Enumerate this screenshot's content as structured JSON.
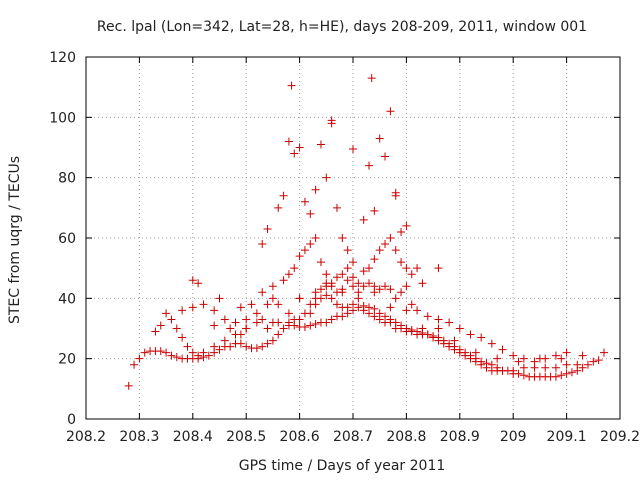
{
  "chart_data": {
    "type": "scatter",
    "title": "Rec. lpal (Lon=342, Lat=28, h=HE), days 208-209, 2011, window 001",
    "xlabel": "GPS time / Days of year 2011",
    "ylabel": "STEC from uqrg / TECUs",
    "xlim": [
      208.2,
      209.2
    ],
    "ylim": [
      0,
      120
    ],
    "xticks": [
      208.2,
      208.3,
      208.4,
      208.5,
      208.6,
      208.7,
      208.8,
      208.9,
      209,
      209.1,
      209.2
    ],
    "xtick_labels": [
      "208.2",
      "208.3",
      "208.4",
      "208.5",
      "208.6",
      "208.7",
      "208.8",
      "208.9",
      "209",
      "209.1",
      "209.2"
    ],
    "yticks": [
      0,
      20,
      40,
      60,
      80,
      100,
      120
    ],
    "ytick_labels": [
      "0",
      "20",
      "40",
      "60",
      "80",
      "100",
      "120"
    ],
    "grid": true,
    "marker": "plus",
    "color": "#cc0000",
    "series": [
      {
        "x": [
          208.28,
          208.29,
          208.3,
          208.31,
          208.32,
          208.33,
          208.34,
          208.35,
          208.36,
          208.37,
          208.38,
          208.39,
          208.4,
          208.41,
          208.42,
          208.43,
          208.44,
          208.45,
          208.46,
          208.47,
          208.48,
          208.49,
          208.5,
          208.51,
          208.52,
          208.53,
          208.54,
          208.55,
          208.56,
          208.57,
          208.58,
          208.59,
          208.6,
          208.61,
          208.62,
          208.63,
          208.64,
          208.65,
          208.66,
          208.67,
          208.68,
          208.69,
          208.7,
          208.71,
          208.72,
          208.73,
          208.74,
          208.75,
          208.76,
          208.77,
          208.78,
          208.79,
          208.8,
          208.81,
          208.82,
          208.83,
          208.84,
          208.85,
          208.86,
          208.87,
          208.88,
          208.89,
          208.9,
          208.91,
          208.92,
          208.93,
          208.94,
          208.95,
          208.96,
          208.97,
          208.98,
          208.99,
          209.0,
          209.01,
          209.02,
          209.03,
          209.04,
          209.05,
          209.06,
          209.07,
          209.08,
          209.09,
          209.1,
          209.11,
          209.12,
          209.13,
          209.14,
          209.15,
          209.16,
          208.33,
          208.34,
          208.36,
          208.37,
          208.38,
          208.39,
          208.4,
          208.41,
          208.42,
          208.44,
          208.46,
          208.48,
          208.49,
          208.5,
          208.52,
          208.53,
          208.54,
          208.56,
          208.58,
          208.6,
          208.62,
          208.63,
          208.64,
          208.65,
          208.66,
          208.67,
          208.68,
          208.69,
          208.7,
          208.72,
          208.73,
          208.74,
          208.75,
          208.76,
          208.77,
          208.78,
          208.79,
          208.8,
          208.81,
          208.82,
          208.83,
          208.84,
          208.85,
          208.86,
          208.87,
          208.88,
          208.89,
          208.9,
          208.91,
          208.92,
          208.93,
          208.94,
          208.95,
          208.96,
          208.97,
          208.98,
          209.0,
          209.02,
          209.04,
          209.06,
          209.08,
          209.1,
          209.12,
          208.35,
          208.38,
          208.4,
          208.42,
          208.44,
          208.46,
          208.48,
          208.5,
          208.52,
          208.54,
          208.55,
          208.56,
          208.58,
          208.59,
          208.6,
          208.61,
          208.62,
          208.63,
          208.64,
          208.65,
          208.66,
          208.67,
          208.68,
          208.69,
          208.7,
          208.71,
          208.72,
          208.73,
          208.74,
          208.75,
          208.76,
          208.77,
          208.78,
          208.79,
          208.8,
          208.81,
          208.82,
          208.84,
          208.86,
          208.88,
          208.9,
          208.92,
          208.94,
          208.96,
          208.98,
          209.0,
          209.02,
          209.04,
          209.06,
          209.08,
          209.1,
          208.41,
          208.45,
          208.49,
          208.51,
          208.53,
          208.55,
          208.57,
          208.58,
          208.59,
          208.6,
          208.61,
          208.62,
          208.63,
          208.64,
          208.65,
          208.66,
          208.67,
          208.68,
          208.69,
          208.7,
          208.72,
          208.73,
          208.74,
          208.75,
          208.76,
          208.77,
          208.78,
          208.79,
          208.8,
          208.81,
          208.82,
          208.83,
          208.86,
          208.53,
          208.54,
          208.56,
          208.57,
          208.58,
          208.59,
          208.6,
          208.61,
          208.62,
          208.63,
          208.64,
          208.65,
          208.66,
          208.67,
          208.68,
          208.69,
          208.7,
          208.71,
          208.72,
          208.73,
          208.74,
          208.75,
          208.76,
          208.77,
          208.78,
          208.79,
          208.8,
          208.4,
          208.44,
          208.47,
          208.5,
          208.55,
          208.6,
          208.63,
          208.65,
          208.68,
          208.71,
          208.74,
          208.77,
          208.8,
          208.83,
          208.86,
          208.89,
          208.93,
          208.97,
          209.01,
          209.05,
          209.09,
          209.13,
          209.17
        ],
        "y": [
          11,
          18,
          20,
          22,
          22.5,
          22.5,
          22.5,
          22,
          21,
          20.5,
          20,
          20,
          20,
          20,
          20.5,
          21,
          22,
          23,
          24,
          24,
          25,
          25,
          24,
          23.5,
          23.5,
          24,
          25,
          26,
          28,
          30,
          31,
          31,
          30.5,
          30.5,
          31,
          31.5,
          32,
          32,
          33,
          34,
          34,
          35,
          36,
          37,
          37.5,
          37,
          36.5,
          35,
          34,
          33,
          32,
          31,
          30,
          29.5,
          29,
          28.5,
          28,
          27.5,
          27,
          26,
          25,
          24,
          23,
          22,
          21,
          20,
          19,
          18.5,
          18,
          17,
          16,
          16,
          15,
          15,
          14.5,
          14,
          14,
          14,
          14,
          14,
          14,
          14.5,
          15,
          15.5,
          16,
          17,
          18,
          19,
          19.5,
          29,
          31,
          33,
          30,
          27,
          24,
          22,
          21,
          22,
          24,
          26,
          28,
          28,
          30,
          32,
          33,
          30,
          32,
          32,
          33,
          35,
          38,
          40,
          41,
          40,
          38,
          37,
          37,
          38,
          36,
          35,
          34,
          33,
          32,
          32,
          30,
          30,
          29,
          29,
          28,
          28,
          28,
          27,
          26,
          25,
          24,
          23,
          22,
          21,
          20,
          19,
          18,
          17,
          16,
          16,
          16,
          16,
          17,
          17,
          17,
          17,
          18,
          18,
          35,
          36,
          37,
          38,
          36,
          33,
          32,
          33,
          35,
          38,
          40,
          38,
          35,
          33,
          40,
          35,
          38,
          42,
          43,
          45,
          44,
          42,
          43,
          46,
          44,
          42,
          44,
          45,
          44,
          43,
          44,
          43,
          40,
          42,
          44,
          38,
          36,
          34,
          33,
          32,
          30,
          28,
          27,
          25,
          23,
          21,
          20,
          19,
          20,
          21,
          22,
          45,
          40,
          37,
          38,
          42,
          44,
          46,
          48,
          50,
          54,
          56,
          58,
          60,
          52,
          48,
          45,
          47,
          48,
          50,
          52,
          49,
          50,
          53,
          56,
          58,
          60,
          56,
          52,
          50,
          48,
          50,
          45,
          50,
          58,
          63,
          70,
          74,
          92,
          88,
          90,
          72,
          68,
          76,
          91,
          80,
          98,
          70,
          60,
          56,
          47,
          45,
          66,
          84,
          69,
          93,
          87,
          102,
          75,
          62,
          64,
          46,
          31,
          30,
          30,
          32,
          40,
          40,
          44,
          42,
          40,
          42,
          37,
          36,
          30,
          30,
          26,
          22,
          20,
          19,
          20,
          20,
          21,
          22
        ]
      },
      {
        "x": [
          208.585,
          208.735,
          208.66,
          208.7,
          208.78
        ],
        "y": [
          110.5,
          113,
          99,
          89.5,
          74
        ]
      }
    ]
  }
}
